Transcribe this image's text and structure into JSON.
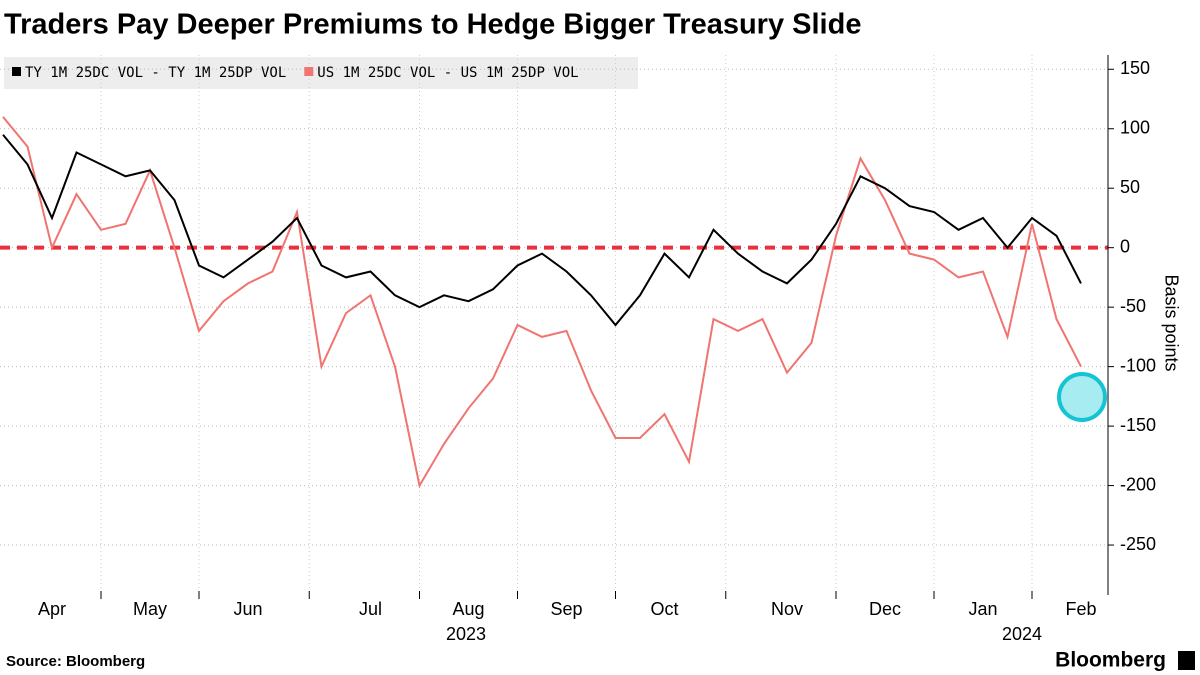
{
  "chart_data": {
    "type": "line",
    "title": "Traders Pay Deeper Premiums to Hedge Bigger Treasury Slide",
    "y_label": "Basis points",
    "source": "Source: Bloomberg",
    "brand": "Bloomberg",
    "year_labels": [
      "2023",
      "2024"
    ],
    "categories": [
      null,
      null,
      "Apr",
      null,
      null,
      null,
      "May",
      null,
      null,
      null,
      "Jun",
      null,
      null,
      null,
      null,
      "Jul",
      null,
      null,
      null,
      "Aug",
      null,
      null,
      null,
      "Sep",
      null,
      null,
      null,
      "Oct",
      null,
      null,
      null,
      null,
      "Nov",
      null,
      null,
      null,
      "Dec",
      null,
      null,
      null,
      "Jan",
      null,
      null,
      null,
      "Feb"
    ],
    "series": [
      {
        "name": "TY 1M 25DC VOL - TY 1M 25DP VOL",
        "color": "#000000",
        "values": [
          95,
          70,
          25,
          80,
          70,
          60,
          65,
          40,
          -15,
          -25,
          -10,
          5,
          25,
          -15,
          -25,
          -20,
          -40,
          -50,
          -40,
          -45,
          -35,
          -15,
          -5,
          -20,
          -40,
          -65,
          -40,
          -5,
          -25,
          15,
          -5,
          -20,
          -30,
          -10,
          20,
          60,
          50,
          35,
          30,
          15,
          25,
          0,
          25,
          10,
          -30
        ]
      },
      {
        "name": "US 1M 25DC VOL - US 1M 25DP VOL",
        "color": "#f07470",
        "values": [
          110,
          85,
          0,
          45,
          15,
          20,
          65,
          0,
          -70,
          -45,
          -30,
          -20,
          30,
          -100,
          -55,
          -40,
          -100,
          -200,
          -165,
          -135,
          -110,
          -65,
          -75,
          -70,
          -120,
          -160,
          -160,
          -140,
          -180,
          -60,
          -70,
          -60,
          -105,
          -80,
          10,
          75,
          40,
          -5,
          -10,
          -25,
          -20,
          -75,
          20,
          -60,
          -100
        ]
      }
    ],
    "ylim": [
      -292,
      162
    ],
    "yticks": [
      -250,
      -200,
      -150,
      -100,
      -50,
      0,
      50,
      100,
      150
    ],
    "zero_line_color": "#e8303f",
    "grid": true
  }
}
